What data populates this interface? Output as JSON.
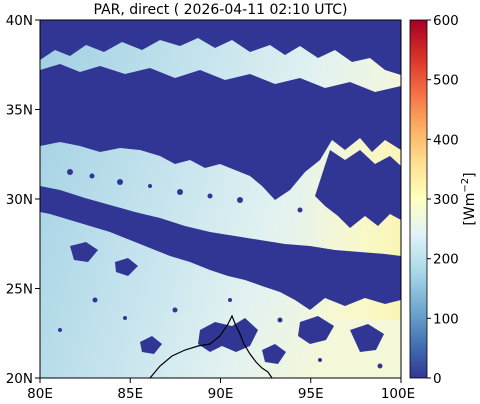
{
  "title": "PAR, direct ( 2026-04-11 02:10 UTC)",
  "map": {
    "x_ticks": [
      "80E",
      "85E",
      "90E",
      "95E",
      "100E"
    ],
    "y_ticks": [
      "40N",
      "35N",
      "30N",
      "25N",
      "20N"
    ],
    "lon_range": [
      80,
      100
    ],
    "lat_range": [
      20,
      40
    ],
    "cloud_color": "#313695",
    "background_gradient": [
      "#9fcfe3",
      "#c9e5ee",
      "#e6f3f0",
      "#f8f9cf"
    ],
    "coastline_color": "#000000"
  },
  "colorbar": {
    "ticks": [
      "0",
      "100",
      "200",
      "300",
      "400",
      "500",
      "600"
    ],
    "label": "[Wm",
    "label_exponent": "−2",
    "label_close": "]",
    "range": [
      0,
      600
    ],
    "colormap": "RdYlBu_r"
  }
}
